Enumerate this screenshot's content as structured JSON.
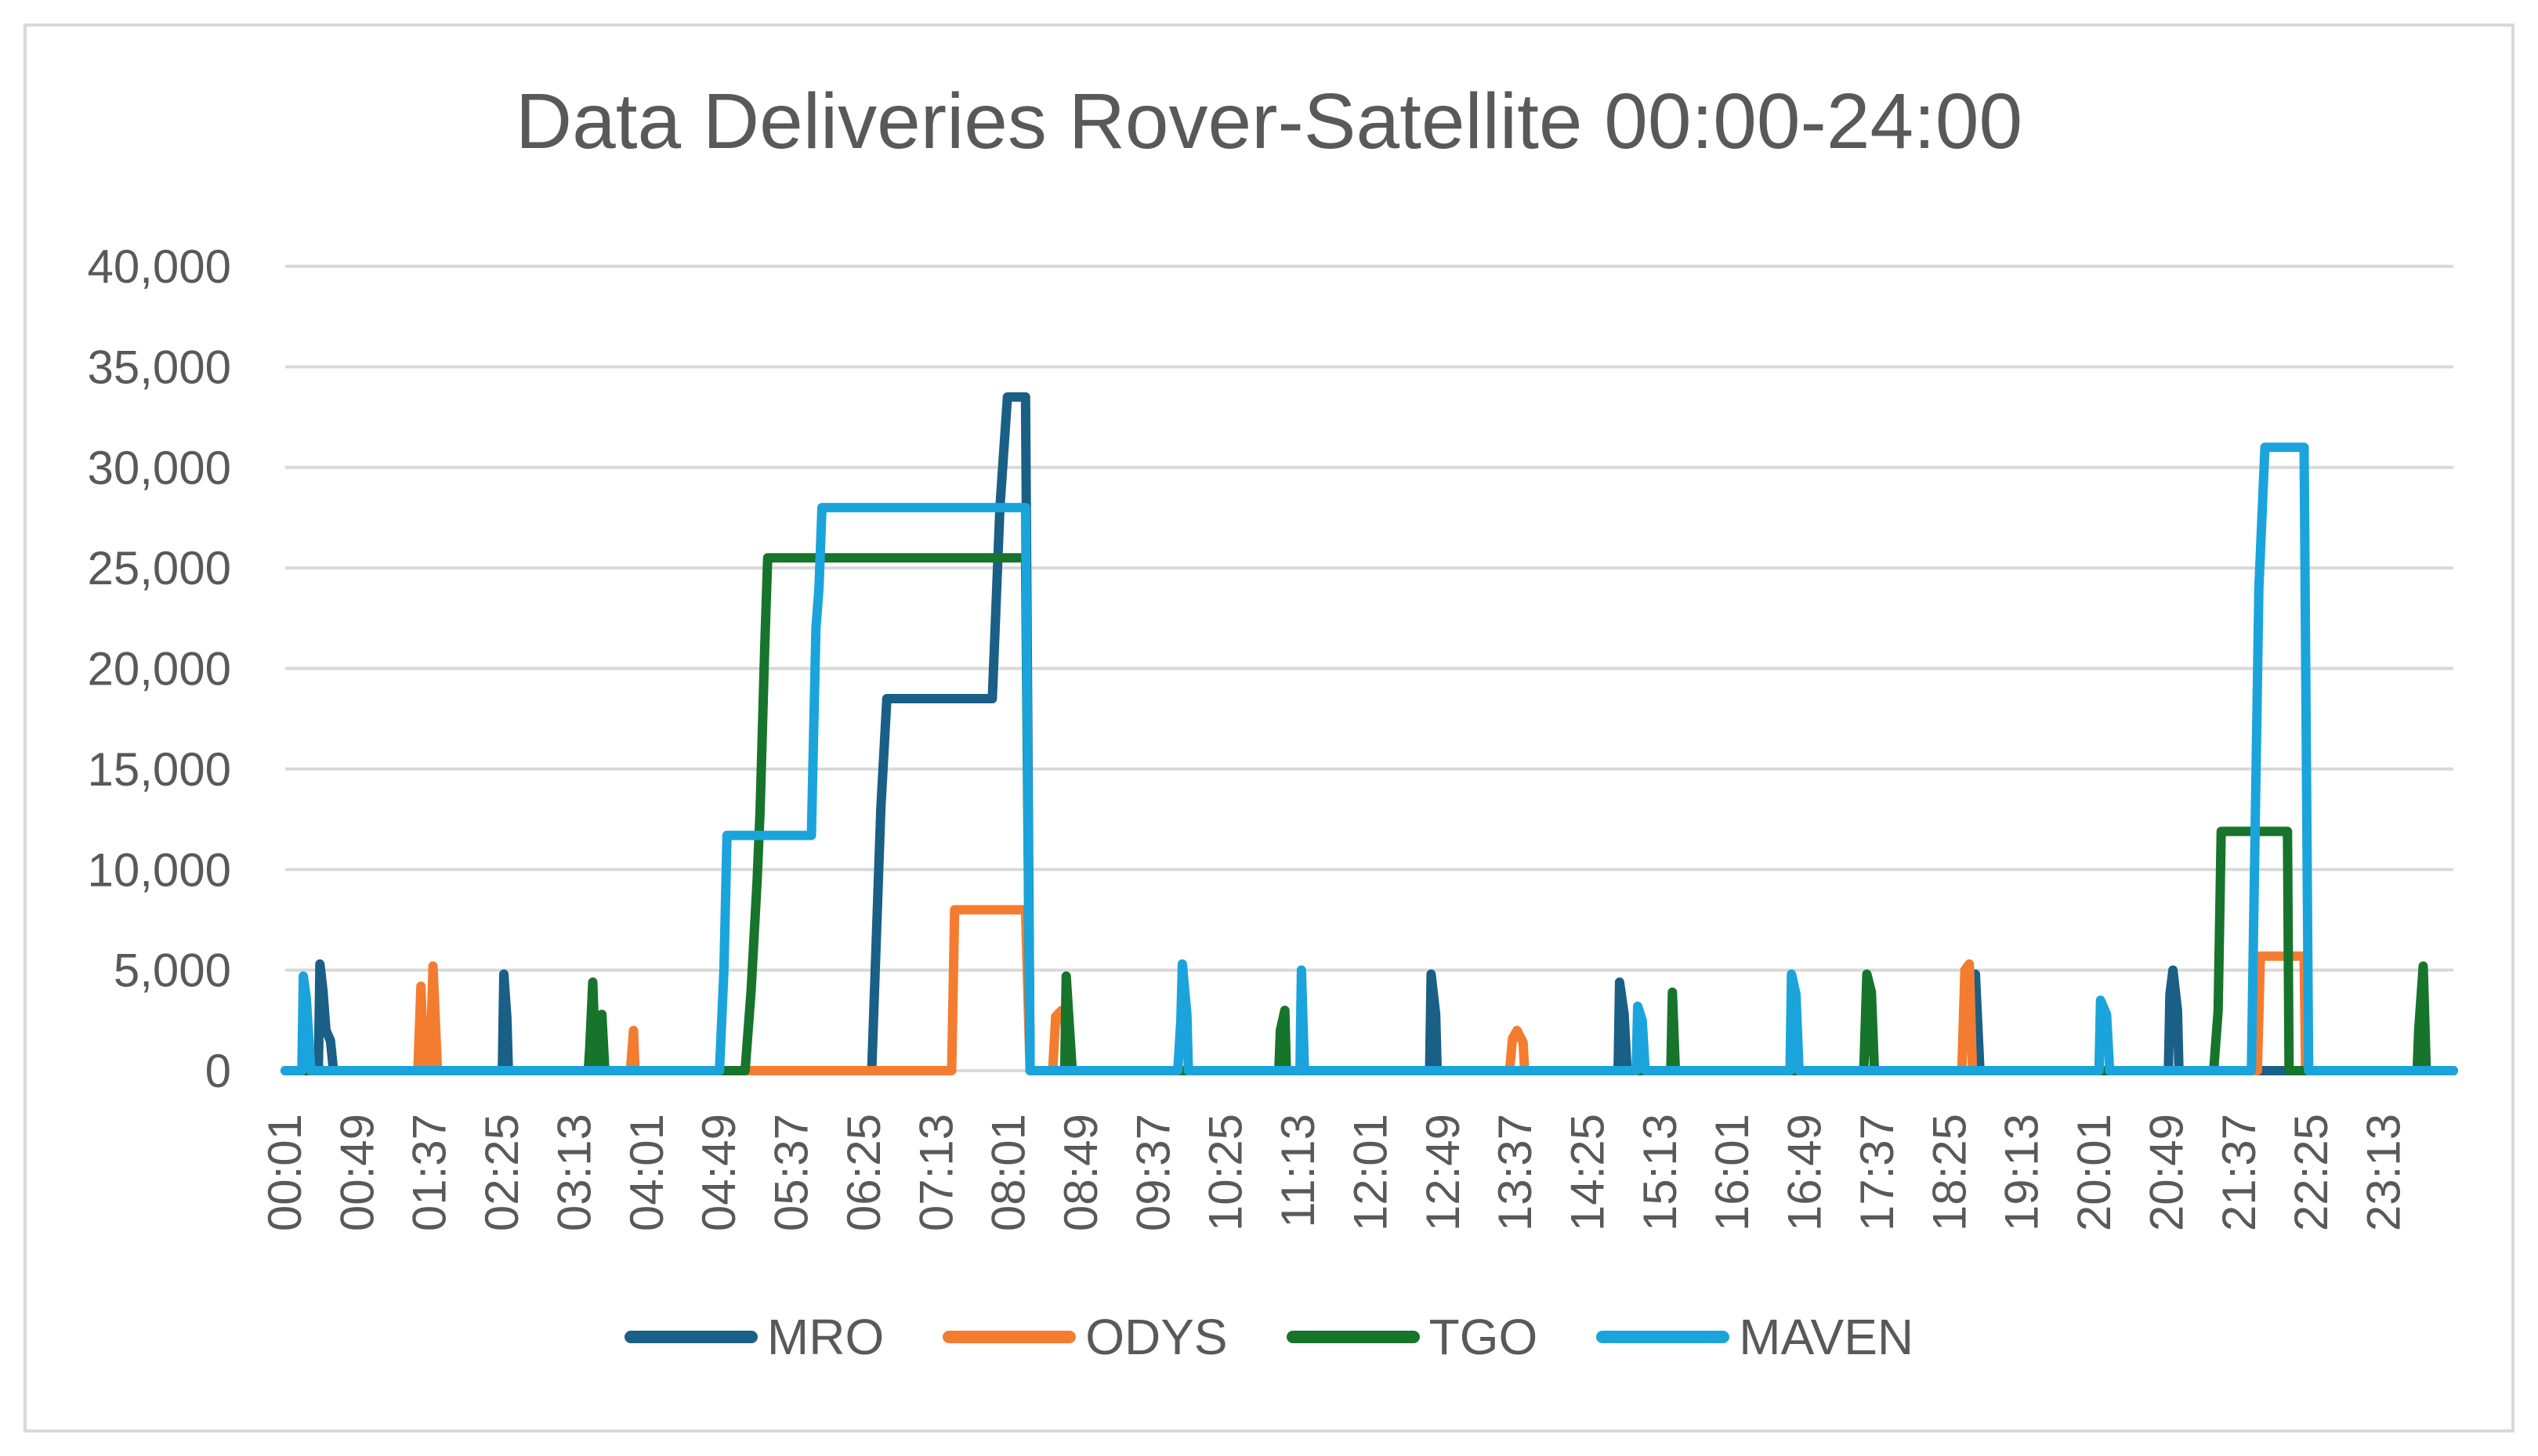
{
  "chart_data": {
    "type": "line",
    "title": "Data Deliveries Rover-Satellite 00:00-24:00",
    "xlabel": "",
    "ylabel": "",
    "ylim": [
      0,
      40000
    ],
    "yticks": [
      "0",
      "5,000",
      "10,000",
      "15,000",
      "20,000",
      "25,000",
      "30,000",
      "35,000",
      "40,000"
    ],
    "xlim": [
      "00:01",
      "23:59"
    ],
    "xticks": [
      "00:01",
      "00:49",
      "01:37",
      "02:25",
      "03:13",
      "04:01",
      "04:49",
      "05:37",
      "06:25",
      "07:13",
      "08:01",
      "08:49",
      "09:37",
      "10:25",
      "11:13",
      "12:01",
      "12:49",
      "13:37",
      "14:25",
      "15:13",
      "16:01",
      "16:49",
      "17:37",
      "18:25",
      "19:13",
      "20:01",
      "20:49",
      "21:37",
      "22:25",
      "23:13"
    ],
    "grid": true,
    "legend_position": "bottom",
    "series": [
      {
        "name": "MRO",
        "color": "#1a5f86",
        "points": [
          [
            "00:01",
            0
          ],
          [
            "00:23",
            0
          ],
          [
            "00:24",
            5300
          ],
          [
            "00:26",
            4000
          ],
          [
            "00:28",
            2000
          ],
          [
            "00:31",
            1500
          ],
          [
            "00:33",
            0
          ],
          [
            "02:25",
            0
          ],
          [
            "02:26",
            4800
          ],
          [
            "02:28",
            2600
          ],
          [
            "02:29",
            0
          ],
          [
            "06:30",
            0
          ],
          [
            "06:36",
            13000
          ],
          [
            "06:40",
            18500
          ],
          [
            "07:50",
            18500
          ],
          [
            "07:55",
            28000
          ],
          [
            "08:00",
            33500
          ],
          [
            "08:12",
            33500
          ],
          [
            "08:15",
            0
          ],
          [
            "12:40",
            0
          ],
          [
            "12:41",
            4800
          ],
          [
            "12:44",
            2800
          ],
          [
            "12:45",
            0
          ],
          [
            "14:45",
            0
          ],
          [
            "14:46",
            4400
          ],
          [
            "14:49",
            2800
          ],
          [
            "14:51",
            0
          ],
          [
            "18:41",
            0
          ],
          [
            "18:42",
            4800
          ],
          [
            "18:45",
            0
          ],
          [
            "20:50",
            0
          ],
          [
            "20:51",
            3800
          ],
          [
            "20:53",
            5000
          ],
          [
            "20:56",
            3000
          ],
          [
            "20:57",
            0
          ],
          [
            "22:09",
            0
          ],
          [
            "22:10",
            0
          ],
          [
            "23:59",
            0
          ]
        ]
      },
      {
        "name": "ODYS",
        "color": "#f47c30",
        "points": [
          [
            "00:01",
            0
          ],
          [
            "01:29",
            0
          ],
          [
            "01:31",
            4200
          ],
          [
            "01:33",
            0
          ],
          [
            "01:37",
            0
          ],
          [
            "01:39",
            5200
          ],
          [
            "01:42",
            0
          ],
          [
            "03:50",
            0
          ],
          [
            "03:52",
            2000
          ],
          [
            "03:53",
            0
          ],
          [
            "05:20",
            0
          ],
          [
            "07:23",
            0
          ],
          [
            "07:25",
            8000
          ],
          [
            "08:12",
            8000
          ],
          [
            "08:15",
            0
          ],
          [
            "08:30",
            0
          ],
          [
            "08:32",
            2700
          ],
          [
            "08:36",
            3000
          ],
          [
            "08:38",
            2500
          ],
          [
            "08:41",
            0
          ],
          [
            "13:33",
            0
          ],
          [
            "13:35",
            1600
          ],
          [
            "13:38",
            2000
          ],
          [
            "13:42",
            1400
          ],
          [
            "13:43",
            0
          ],
          [
            "18:33",
            0
          ],
          [
            "18:35",
            5000
          ],
          [
            "18:38",
            5300
          ],
          [
            "18:40",
            0
          ],
          [
            "21:49",
            0
          ],
          [
            "21:51",
            5700
          ],
          [
            "22:20",
            5700
          ],
          [
            "22:21",
            0
          ],
          [
            "23:59",
            0
          ]
        ]
      },
      {
        "name": "TGO",
        "color": "#17742b",
        "points": [
          [
            "00:01",
            0
          ],
          [
            "03:22",
            0
          ],
          [
            "03:23",
            1200
          ],
          [
            "03:25",
            4400
          ],
          [
            "03:27",
            0
          ],
          [
            "03:29",
            2000
          ],
          [
            "03:31",
            2800
          ],
          [
            "03:33",
            0
          ],
          [
            "05:06",
            0
          ],
          [
            "05:10",
            4000
          ],
          [
            "05:14",
            9500
          ],
          [
            "05:16",
            13000
          ],
          [
            "05:19",
            21000
          ],
          [
            "05:21",
            25500
          ],
          [
            "08:12",
            25500
          ],
          [
            "08:15",
            0
          ],
          [
            "08:38",
            0
          ],
          [
            "08:39",
            4700
          ],
          [
            "08:41",
            2300
          ],
          [
            "08:43",
            0
          ],
          [
            "11:00",
            0
          ],
          [
            "11:01",
            2000
          ],
          [
            "11:04",
            3000
          ],
          [
            "11:05",
            0
          ],
          [
            "15:20",
            0
          ],
          [
            "15:21",
            3900
          ],
          [
            "15:23",
            0
          ],
          [
            "17:28",
            0
          ],
          [
            "17:30",
            4800
          ],
          [
            "17:33",
            3900
          ],
          [
            "17:35",
            0
          ],
          [
            "21:20",
            0
          ],
          [
            "21:23",
            3000
          ],
          [
            "21:25",
            11900
          ],
          [
            "22:09",
            11900
          ],
          [
            "22:10",
            0
          ],
          [
            "23:35",
            0
          ],
          [
            "23:36",
            2000
          ],
          [
            "23:39",
            5200
          ],
          [
            "23:41",
            0
          ],
          [
            "23:59",
            0
          ]
        ]
      },
      {
        "name": "MAVEN",
        "color": "#1ba4dc",
        "points": [
          [
            "00:01",
            0
          ],
          [
            "00:12",
            0
          ],
          [
            "00:13",
            4700
          ],
          [
            "00:15",
            3600
          ],
          [
            "00:18",
            0
          ],
          [
            "04:49",
            0
          ],
          [
            "04:52",
            5000
          ],
          [
            "04:54",
            11700
          ],
          [
            "05:50",
            11700
          ],
          [
            "05:53",
            22000
          ],
          [
            "05:55",
            24000
          ],
          [
            "05:57",
            28000
          ],
          [
            "08:12",
            28000
          ],
          [
            "08:15",
            0
          ],
          [
            "09:53",
            0
          ],
          [
            "09:55",
            2500
          ],
          [
            "09:56",
            5300
          ],
          [
            "09:59",
            2800
          ],
          [
            "10:00",
            0
          ],
          [
            "11:14",
            0
          ],
          [
            "11:15",
            5000
          ],
          [
            "11:17",
            0
          ],
          [
            "14:57",
            0
          ],
          [
            "14:58",
            3200
          ],
          [
            "15:01",
            2500
          ],
          [
            "15:03",
            0
          ],
          [
            "16:39",
            0
          ],
          [
            "16:40",
            4800
          ],
          [
            "16:43",
            3800
          ],
          [
            "16:45",
            0
          ],
          [
            "20:04",
            0
          ],
          [
            "20:05",
            3500
          ],
          [
            "20:09",
            2800
          ],
          [
            "20:11",
            0
          ],
          [
            "21:45",
            0
          ],
          [
            "21:50",
            24000
          ],
          [
            "21:54",
            31000
          ],
          [
            "22:20",
            31000
          ],
          [
            "22:23",
            0
          ],
          [
            "23:59",
            0
          ]
        ]
      }
    ]
  }
}
